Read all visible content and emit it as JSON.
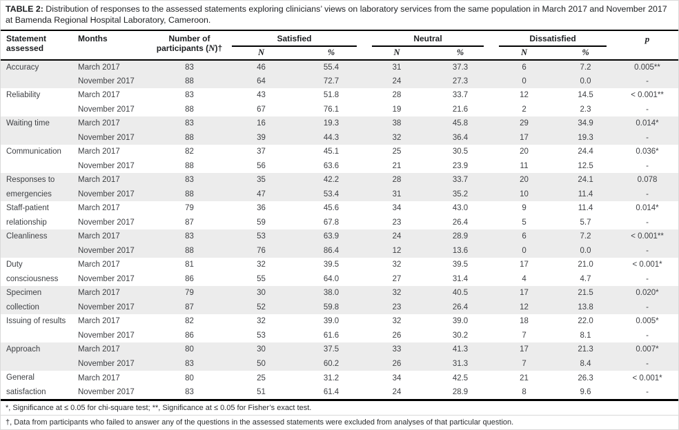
{
  "title": {
    "label": "TABLE 2:",
    "text": "Distribution of responses to the assessed statements exploring clinicians’ views on laboratory services from the same population in March 2017 and November 2017 at Bamenda Regional Hospital Laboratory, Cameroon."
  },
  "table": {
    "headers": {
      "statement": "Statement assessed",
      "months": "Months",
      "participants_prefix": "Number of participants (",
      "participants_n": "N",
      "participants_suffix": ")†",
      "satisfied": "Satisfied",
      "neutral": "Neutral",
      "dissatisfied": "Dissatisfied",
      "sub_n": "N",
      "sub_pct": "%",
      "p": "p"
    },
    "groups": [
      {
        "statement": "Accuracy",
        "rows": [
          {
            "month": "March 2017",
            "n": "83",
            "sat_n": "46",
            "sat_pct": "55.4",
            "neu_n": "31",
            "neu_pct": "37.3",
            "dis_n": "6",
            "dis_pct": "7.2",
            "p": "0.005**"
          },
          {
            "month": "November 2017",
            "n": "88",
            "sat_n": "64",
            "sat_pct": "72.7",
            "neu_n": "24",
            "neu_pct": "27.3",
            "dis_n": "0",
            "dis_pct": "0.0",
            "p": "-"
          }
        ]
      },
      {
        "statement": "Reliability",
        "rows": [
          {
            "month": "March 2017",
            "n": "83",
            "sat_n": "43",
            "sat_pct": "51.8",
            "neu_n": "28",
            "neu_pct": "33.7",
            "dis_n": "12",
            "dis_pct": "14.5",
            "p": "< 0.001**"
          },
          {
            "month": "November 2017",
            "n": "88",
            "sat_n": "67",
            "sat_pct": "76.1",
            "neu_n": "19",
            "neu_pct": "21.6",
            "dis_n": "2",
            "dis_pct": "2.3",
            "p": "-"
          }
        ]
      },
      {
        "statement": "Waiting time",
        "rows": [
          {
            "month": "March 2017",
            "n": "83",
            "sat_n": "16",
            "sat_pct": "19.3",
            "neu_n": "38",
            "neu_pct": "45.8",
            "dis_n": "29",
            "dis_pct": "34.9",
            "p": "0.014*"
          },
          {
            "month": "November 2017",
            "n": "88",
            "sat_n": "39",
            "sat_pct": "44.3",
            "neu_n": "32",
            "neu_pct": "36.4",
            "dis_n": "17",
            "dis_pct": "19.3",
            "p": "-"
          }
        ]
      },
      {
        "statement": "Communication",
        "rows": [
          {
            "month": "March 2017",
            "n": "82",
            "sat_n": "37",
            "sat_pct": "45.1",
            "neu_n": "25",
            "neu_pct": "30.5",
            "dis_n": "20",
            "dis_pct": "24.4",
            "p": "0.036*"
          },
          {
            "month": "November 2017",
            "n": "88",
            "sat_n": "56",
            "sat_pct": "63.6",
            "neu_n": "21",
            "neu_pct": "23.9",
            "dis_n": "11",
            "dis_pct": "12.5",
            "p": "-"
          }
        ]
      },
      {
        "statement": "Responses to emergencies",
        "rows": [
          {
            "month": "March 2017",
            "n": "83",
            "sat_n": "35",
            "sat_pct": "42.2",
            "neu_n": "28",
            "neu_pct": "33.7",
            "dis_n": "20",
            "dis_pct": "24.1",
            "p": "0.078"
          },
          {
            "month": "November 2017",
            "n": "88",
            "sat_n": "47",
            "sat_pct": "53.4",
            "neu_n": "31",
            "neu_pct": "35.2",
            "dis_n": "10",
            "dis_pct": "11.4",
            "p": "-"
          }
        ]
      },
      {
        "statement": "Staff-patient relationship",
        "rows": [
          {
            "month": "March 2017",
            "n": "79",
            "sat_n": "36",
            "sat_pct": "45.6",
            "neu_n": "34",
            "neu_pct": "43.0",
            "dis_n": "9",
            "dis_pct": "11.4",
            "p": "0.014*"
          },
          {
            "month": "November 2017",
            "n": "87",
            "sat_n": "59",
            "sat_pct": "67.8",
            "neu_n": "23",
            "neu_pct": "26.4",
            "dis_n": "5",
            "dis_pct": "5.7",
            "p": "-"
          }
        ]
      },
      {
        "statement": "Cleanliness",
        "rows": [
          {
            "month": "March 2017",
            "n": "83",
            "sat_n": "53",
            "sat_pct": "63.9",
            "neu_n": "24",
            "neu_pct": "28.9",
            "dis_n": "6",
            "dis_pct": "7.2",
            "p": "< 0.001**"
          },
          {
            "month": "November 2017",
            "n": "88",
            "sat_n": "76",
            "sat_pct": "86.4",
            "neu_n": "12",
            "neu_pct": "13.6",
            "dis_n": "0",
            "dis_pct": "0.0",
            "p": "-"
          }
        ]
      },
      {
        "statement": "Duty consciousness",
        "rows": [
          {
            "month": "March 2017",
            "n": "81",
            "sat_n": "32",
            "sat_pct": "39.5",
            "neu_n": "32",
            "neu_pct": "39.5",
            "dis_n": "17",
            "dis_pct": "21.0",
            "p": "< 0.001*"
          },
          {
            "month": "November 2017",
            "n": "86",
            "sat_n": "55",
            "sat_pct": "64.0",
            "neu_n": "27",
            "neu_pct": "31.4",
            "dis_n": "4",
            "dis_pct": "4.7",
            "p": "-"
          }
        ]
      },
      {
        "statement": "Specimen collection",
        "rows": [
          {
            "month": "March 2017",
            "n": "79",
            "sat_n": "30",
            "sat_pct": "38.0",
            "neu_n": "32",
            "neu_pct": "40.5",
            "dis_n": "17",
            "dis_pct": "21.5",
            "p": "0.020*"
          },
          {
            "month": "November 2017",
            "n": "87",
            "sat_n": "52",
            "sat_pct": "59.8",
            "neu_n": "23",
            "neu_pct": "26.4",
            "dis_n": "12",
            "dis_pct": "13.8",
            "p": "-"
          }
        ]
      },
      {
        "statement": "Issuing of results",
        "rows": [
          {
            "month": "March 2017",
            "n": "82",
            "sat_n": "32",
            "sat_pct": "39.0",
            "neu_n": "32",
            "neu_pct": "39.0",
            "dis_n": "18",
            "dis_pct": "22.0",
            "p": "0.005*"
          },
          {
            "month": "November 2017",
            "n": "86",
            "sat_n": "53",
            "sat_pct": "61.6",
            "neu_n": "26",
            "neu_pct": "30.2",
            "dis_n": "7",
            "dis_pct": "8.1",
            "p": "-"
          }
        ]
      },
      {
        "statement": "Approach",
        "rows": [
          {
            "month": "March 2017",
            "n": "80",
            "sat_n": "30",
            "sat_pct": "37.5",
            "neu_n": "33",
            "neu_pct": "41.3",
            "dis_n": "17",
            "dis_pct": "21.3",
            "p": "0.007*"
          },
          {
            "month": "November 2017",
            "n": "83",
            "sat_n": "50",
            "sat_pct": "60.2",
            "neu_n": "26",
            "neu_pct": "31.3",
            "dis_n": "7",
            "dis_pct": "8.4",
            "p": "-"
          }
        ]
      },
      {
        "statement": "General satisfaction",
        "rows": [
          {
            "month": "March 2017",
            "n": "80",
            "sat_n": "25",
            "sat_pct": "31.2",
            "neu_n": "34",
            "neu_pct": "42.5",
            "dis_n": "21",
            "dis_pct": "26.3",
            "p": "< 0.001*"
          },
          {
            "month": "November 2017",
            "n": "83",
            "sat_n": "51",
            "sat_pct": "61.4",
            "neu_n": "24",
            "neu_pct": "28.9",
            "dis_n": "8",
            "dis_pct": "9.6",
            "p": "-"
          }
        ]
      }
    ]
  },
  "footnotes": [
    "*, Significance at ≤ 0.05 for chi-square test; **, Significance at ≤ 0.05 for Fisher’s exact test.",
    "†, Data from participants who failed to answer any of the questions in the assessed statements were excluded from analyses of that particular question."
  ],
  "colors": {
    "row_shade": "#ececec",
    "table_border": "#000000",
    "body_text": "#3f4145"
  }
}
